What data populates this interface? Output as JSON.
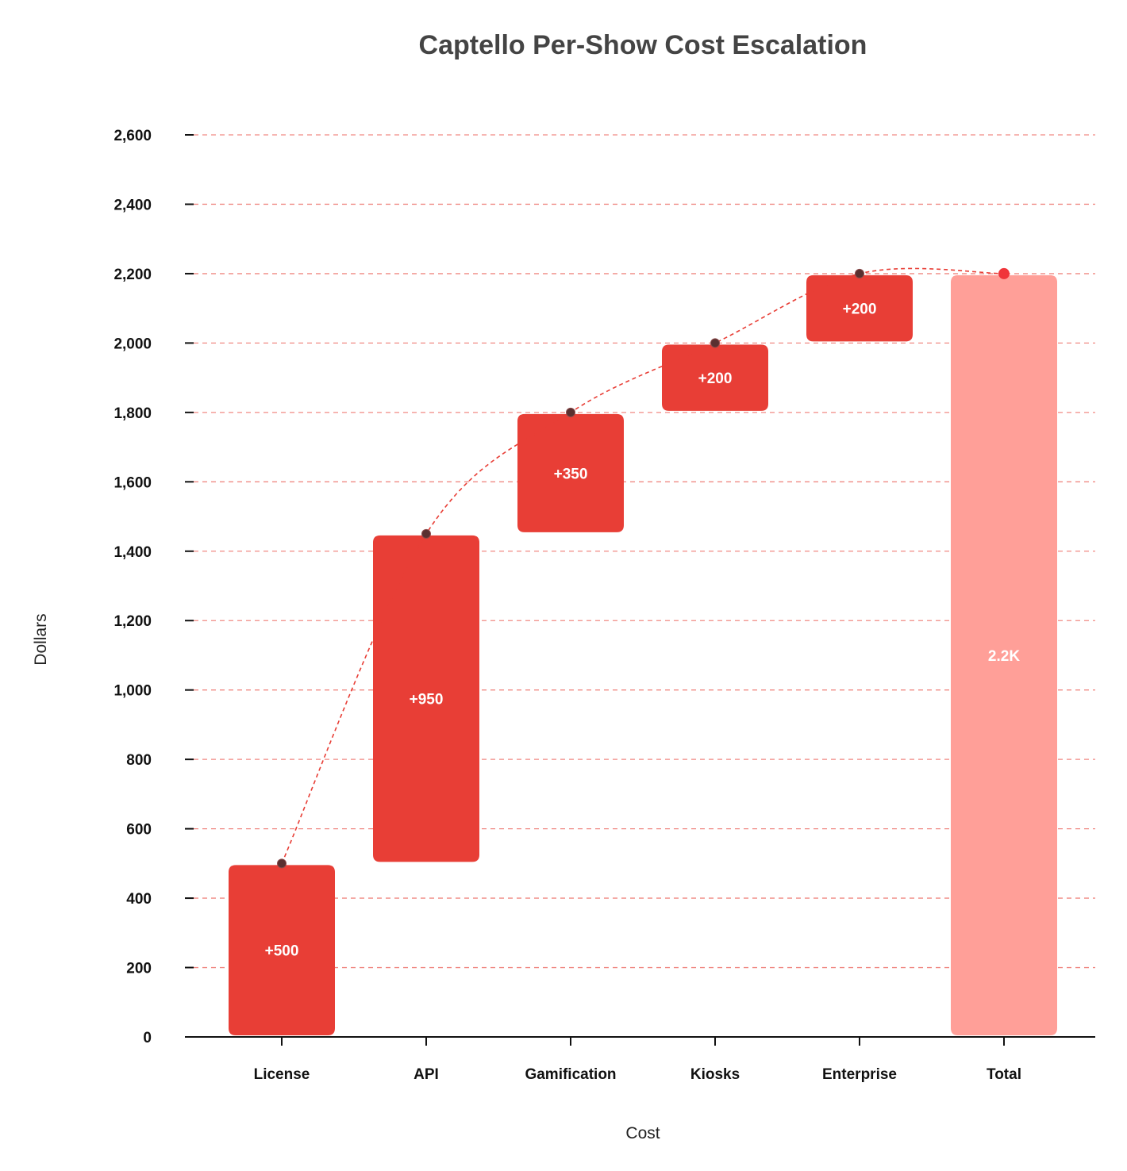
{
  "chart_data": {
    "type": "waterfall",
    "title": "Captello Per-Show Cost Escalation",
    "xlabel": "Cost",
    "ylabel": "Dollars",
    "ylim": [
      0,
      2600
    ],
    "yticks": [
      0,
      200,
      400,
      600,
      800,
      1000,
      1200,
      1400,
      1600,
      1800,
      2000,
      2200,
      2400,
      2600
    ],
    "ytick_labels": [
      "0",
      "200",
      "400",
      "600",
      "800",
      "1,000",
      "1,200",
      "1,400",
      "1,600",
      "1,800",
      "2,000",
      "2,200",
      "2,400",
      "2,600"
    ],
    "categories": [
      "License",
      "API",
      "Gamification",
      "Kiosks",
      "Enterprise",
      "Total"
    ],
    "values": [
      500,
      950,
      350,
      200,
      200,
      2200
    ],
    "is_total": [
      false,
      false,
      false,
      false,
      false,
      true
    ],
    "bar_labels": [
      "+500",
      "+950",
      "+350",
      "+200",
      "+200",
      "2.2K"
    ],
    "grid": true,
    "grid_style": "dashed",
    "connector_line": true,
    "colors": {
      "increase": "#e83e36",
      "total": "#ff9f98",
      "grid": "#f08a84",
      "connector": "#e83e36",
      "marker": "#5a3030",
      "total_marker": "#f0353a"
    }
  }
}
